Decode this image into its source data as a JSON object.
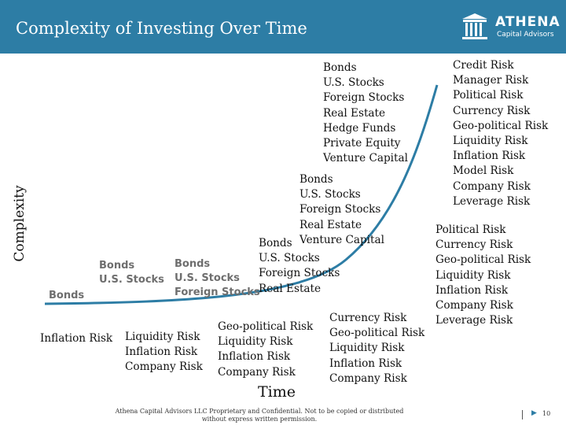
{
  "header": {
    "title": "Complexity of Investing Over Time",
    "logo": {
      "name": "ATHENA",
      "subtitle": "Capital Advisors",
      "icon": "column-icon"
    },
    "background": "#2d7da5"
  },
  "axes": {
    "y_label": "Complexity",
    "x_label": "Time"
  },
  "curve_color": "#2d7da5",
  "asset_stages": [
    {
      "id": "stage1",
      "items": [
        "Bonds"
      ]
    },
    {
      "id": "stage2",
      "items": [
        "Bonds",
        "U.S. Stocks"
      ]
    },
    {
      "id": "stage3",
      "items": [
        "Bonds",
        "U.S. Stocks",
        "Foreign Stocks"
      ]
    },
    {
      "id": "stage4",
      "items": [
        "Bonds",
        "U.S. Stocks",
        "Foreign Stocks",
        "Real Estate"
      ]
    },
    {
      "id": "stage5",
      "items": [
        "Bonds",
        "U.S. Stocks",
        "Foreign Stocks",
        "Real Estate",
        "Venture Capital"
      ]
    },
    {
      "id": "stage6",
      "items": [
        "Bonds",
        "U.S. Stocks",
        "Foreign Stocks",
        "Real Estate",
        "Hedge Funds",
        "Private Equity",
        "Venture Capital"
      ]
    }
  ],
  "risk_stages": [
    {
      "id": "risk1",
      "items": [
        "Inflation Risk"
      ]
    },
    {
      "id": "risk2",
      "items": [
        "Liquidity Risk",
        "Inflation Risk",
        "Company Risk"
      ]
    },
    {
      "id": "risk3",
      "items": [
        "Geo-political Risk",
        "Liquidity Risk",
        "Inflation Risk",
        "Company Risk"
      ]
    },
    {
      "id": "risk4",
      "items": [
        "Currency Risk",
        "Geo-political Risk",
        "Liquidity Risk",
        "Inflation Risk",
        "Company Risk"
      ]
    },
    {
      "id": "risk5",
      "items": [
        "Political Risk",
        "Currency Risk",
        "Geo-political Risk",
        "Liquidity Risk",
        "Inflation Risk",
        "Company Risk",
        "Leverage Risk"
      ]
    },
    {
      "id": "risk6",
      "items": [
        "Credit Risk",
        "Manager Risk",
        "Political Risk",
        "Currency Risk",
        "Geo-political Risk",
        "Liquidity Risk",
        "Inflation Risk",
        "Model Risk",
        "Company Risk",
        "Leverage Risk"
      ]
    }
  ],
  "footer": {
    "disclaimer": "Athena Capital Advisors LLC Proprietary and Confidential. Not to be copied or distributed without express written permission.",
    "page_number": "10"
  }
}
